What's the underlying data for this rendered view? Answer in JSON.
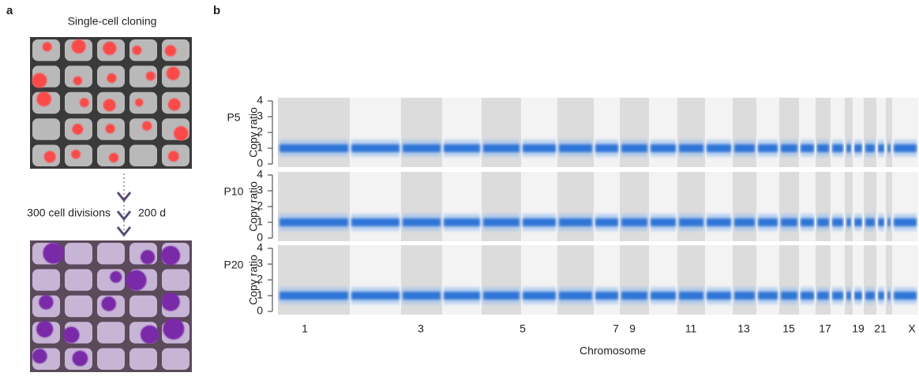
{
  "panel_a": {
    "label": "a",
    "title": "Single-cell cloning",
    "arrow_left": "300 cell divisions",
    "arrow_right": "200 d"
  },
  "panel_b": {
    "label": "b",
    "y_label": "Copy ratio",
    "x_label": "Chromosome",
    "ylim": [
      0,
      4
    ],
    "yticks": [
      0,
      1,
      2,
      3,
      4
    ],
    "rows": [
      "P5",
      "P10",
      "P20"
    ],
    "chromosomes": [
      "1",
      "3",
      "5",
      "7",
      "9",
      "11",
      "13",
      "15",
      "17",
      "19",
      "21",
      "X"
    ]
  }
}
